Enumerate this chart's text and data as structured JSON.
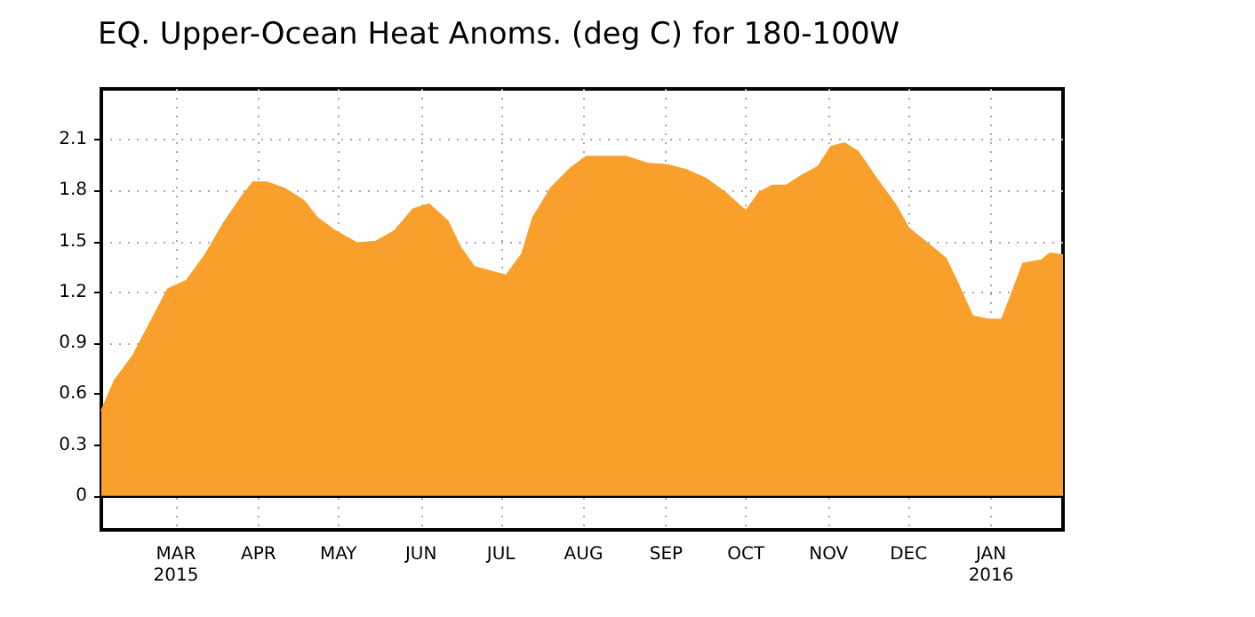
{
  "chart_data": {
    "type": "area",
    "title": "EQ. Upper-Ocean Heat Anoms. (deg C) for 180-100W",
    "x": [
      "2015-02-01",
      "2015-02-06",
      "2015-02-13",
      "2015-02-20",
      "2015-02-26",
      "2015-03-05",
      "2015-03-12",
      "2015-03-19",
      "2015-03-26",
      "2015-03-30",
      "2015-04-04",
      "2015-04-11",
      "2015-04-18",
      "2015-04-23",
      "2015-04-30",
      "2015-05-08",
      "2015-05-15",
      "2015-05-22",
      "2015-05-29",
      "2015-06-04",
      "2015-06-11",
      "2015-06-16",
      "2015-06-21",
      "2015-06-28",
      "2015-07-03",
      "2015-07-09",
      "2015-07-13",
      "2015-07-20",
      "2015-07-27",
      "2015-08-02",
      "2015-08-09",
      "2015-08-17",
      "2015-08-25",
      "2015-09-02",
      "2015-09-09",
      "2015-09-16",
      "2015-09-23",
      "2015-09-28",
      "2015-10-01",
      "2015-10-06",
      "2015-10-11",
      "2015-10-16",
      "2015-10-22",
      "2015-10-28",
      "2015-11-02",
      "2015-11-07",
      "2015-11-12",
      "2015-11-19",
      "2015-11-26",
      "2015-12-01",
      "2015-12-08",
      "2015-12-15",
      "2015-12-19",
      "2015-12-25",
      "2015-12-31",
      "2016-01-05",
      "2016-01-08",
      "2016-01-13",
      "2016-01-20",
      "2016-01-23",
      "2016-01-28"
    ],
    "values": [
      0.5,
      0.68,
      0.83,
      1.04,
      1.22,
      1.27,
      1.42,
      1.61,
      1.77,
      1.85,
      1.85,
      1.81,
      1.74,
      1.64,
      1.56,
      1.49,
      1.5,
      1.56,
      1.69,
      1.72,
      1.62,
      1.46,
      1.35,
      1.32,
      1.3,
      1.43,
      1.64,
      1.82,
      1.93,
      2.0,
      2.0,
      2.0,
      1.96,
      1.95,
      1.92,
      1.87,
      1.79,
      1.72,
      1.68,
      1.79,
      1.83,
      1.83,
      1.89,
      1.94,
      2.06,
      2.08,
      2.03,
      1.87,
      1.72,
      1.58,
      1.49,
      1.4,
      1.27,
      1.06,
      1.04,
      1.04,
      1.16,
      1.37,
      1.39,
      1.43,
      1.42
    ],
    "color": "#f9a02c",
    "xlim": [
      "2015-02-01",
      "2016-01-28"
    ],
    "xticks": [
      {
        "value": "2015-03-01",
        "label": "MAR\n2015"
      },
      {
        "value": "2015-04-01",
        "label": "APR"
      },
      {
        "value": "2015-05-01",
        "label": "MAY"
      },
      {
        "value": "2015-06-01",
        "label": "JUN"
      },
      {
        "value": "2015-07-01",
        "label": "JUL"
      },
      {
        "value": "2015-08-01",
        "label": "AUG"
      },
      {
        "value": "2015-09-01",
        "label": "SEP"
      },
      {
        "value": "2015-10-01",
        "label": "OCT"
      },
      {
        "value": "2015-11-01",
        "label": "NOV"
      },
      {
        "value": "2015-12-01",
        "label": "DEC"
      },
      {
        "value": "2016-01-01",
        "label": "JAN\n2016"
      }
    ],
    "ylim": [
      -0.2,
      2.4
    ],
    "yticks": [
      0,
      0.3,
      0.6,
      0.9,
      1.2,
      1.5,
      1.8,
      2.1
    ],
    "grid": true,
    "marker": "none"
  }
}
